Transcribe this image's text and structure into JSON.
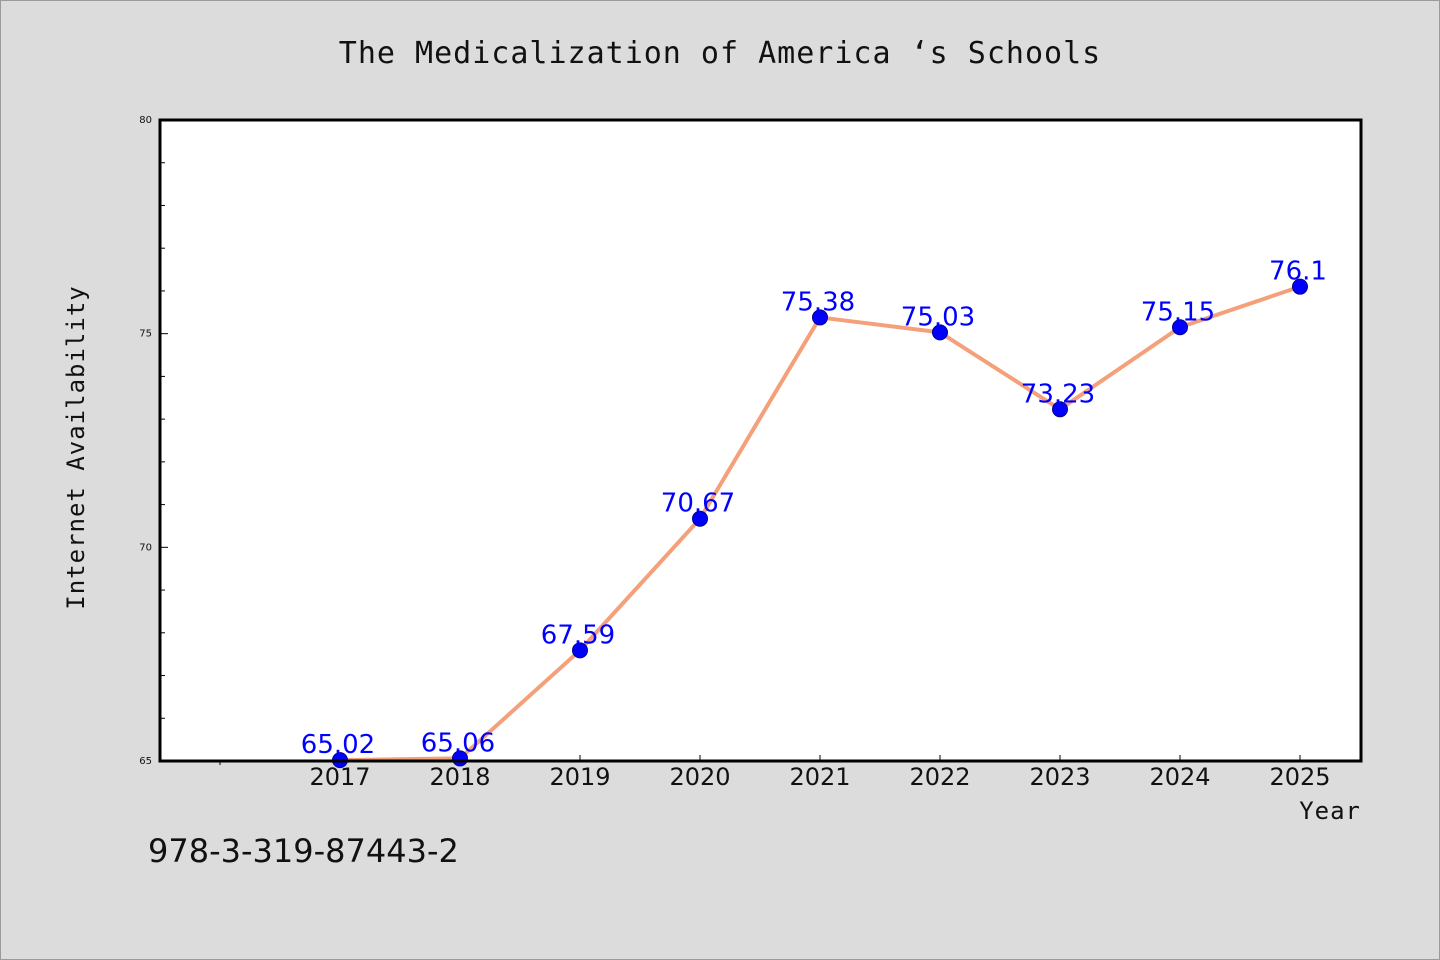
{
  "chart_data": {
    "type": "line",
    "title": "The Medicalization of America ‘s Schools",
    "xlabel": "Year",
    "ylabel": "Internet Availability",
    "categories": [
      "2017",
      "2018",
      "2019",
      "2020",
      "2021",
      "2022",
      "2023",
      "2024",
      "2025"
    ],
    "series": [
      {
        "values": [
          65.02,
          65.06,
          67.59,
          70.67,
          75.38,
          75.03,
          73.23,
          75.15,
          76.1
        ],
        "labels": [
          "65.02",
          "65.06",
          "67.59",
          "70.67",
          "75.38",
          "75.03",
          "73.23",
          "75.15",
          "76.1"
        ]
      }
    ],
    "ylim": [
      65,
      80
    ],
    "yticks": [
      "65",
      "70",
      "75",
      "80"
    ],
    "grid": false,
    "line_color": "#f4a07a",
    "marker_color": "#0000ff",
    "label_color": "#0000ff"
  },
  "footer": {
    "isbn": "978-3-319-87443-2"
  }
}
